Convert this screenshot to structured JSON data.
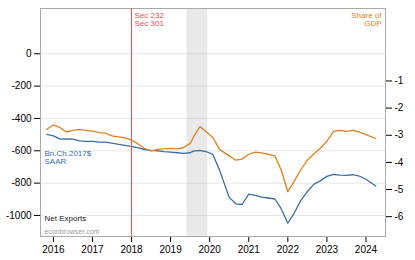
{
  "chart_data": {
    "type": "line",
    "x": [
      2015.83,
      2016.0,
      2016.17,
      2016.33,
      2016.5,
      2016.67,
      2016.83,
      2017.0,
      2017.17,
      2017.33,
      2017.5,
      2017.67,
      2017.83,
      2018.0,
      2018.17,
      2018.33,
      2018.5,
      2018.67,
      2018.83,
      2019.0,
      2019.17,
      2019.33,
      2019.5,
      2019.58,
      2019.75,
      2019.92,
      2020.08,
      2020.25,
      2020.5,
      2020.67,
      2020.83,
      2021.0,
      2021.17,
      2021.33,
      2021.5,
      2021.67,
      2021.83,
      2022.0,
      2022.17,
      2022.33,
      2022.5,
      2022.67,
      2022.83,
      2023.0,
      2023.17,
      2023.33,
      2023.5,
      2023.67,
      2023.83,
      2024.0,
      2024.25
    ],
    "xlim": [
      2015.67,
      2024.5
    ],
    "xticks": [
      2016,
      2017,
      2018,
      2019,
      2020,
      2021,
      2022,
      2023,
      2024
    ],
    "ylim": [
      -1130,
      280
    ],
    "yticks": [
      -1000,
      -800,
      -600,
      -400,
      -200,
      0
    ],
    "y2lim": [
      -6.73,
      1.67
    ],
    "y2ticks": [
      -6,
      -5,
      -4,
      -3,
      -2,
      -1
    ],
    "grid": true,
    "series": [
      {
        "color": "#3a6ea5",
        "values": [
          -498,
          -508,
          -528,
          -526,
          -528,
          -538,
          -542,
          -542,
          -546,
          -546,
          -552,
          -560,
          -566,
          -572,
          -582,
          -592,
          -598,
          -601,
          -605,
          -608,
          -612,
          -616,
          -612,
          -602,
          -598,
          -606,
          -622,
          -718,
          -888,
          -928,
          -932,
          -868,
          -876,
          -886,
          -892,
          -898,
          -958,
          -1048,
          -982,
          -908,
          -852,
          -806,
          -786,
          -758,
          -746,
          -750,
          -752,
          -748,
          -756,
          -776,
          -818
        ]
      },
      {
        "color": "#e08020",
        "axis": "y2",
        "values": [
          -2.78,
          -2.62,
          -2.72,
          -2.88,
          -2.82,
          -2.78,
          -2.82,
          -2.85,
          -2.9,
          -2.92,
          -3.02,
          -3.06,
          -3.1,
          -3.18,
          -3.32,
          -3.48,
          -3.58,
          -3.52,
          -3.5,
          -3.48,
          -3.5,
          -3.46,
          -3.3,
          -3.08,
          -2.68,
          -2.88,
          -3.08,
          -3.52,
          -3.76,
          -3.92,
          -3.88,
          -3.7,
          -3.62,
          -3.65,
          -3.7,
          -3.76,
          -4.28,
          -5.08,
          -4.68,
          -4.28,
          -3.92,
          -3.68,
          -3.48,
          -3.22,
          -2.86,
          -2.82,
          -2.86,
          -2.82,
          -2.88,
          -2.98,
          -3.12
        ]
      }
    ],
    "vlines": [
      {
        "x": 2018.0,
        "color": "#e05050"
      }
    ],
    "spans": [
      {
        "x1": 2019.42,
        "x2": 2019.95,
        "color": "#999999"
      }
    ],
    "annotations": [
      {
        "text": "Sec 232\nSec 301",
        "color": "#e05050"
      },
      {
        "text": "Share of\nGDP",
        "color": "#e08020"
      },
      {
        "text": "Bn.Ch.2017$\nSAAR",
        "color": "#3a6ea5"
      },
      {
        "text": "Net Exports",
        "color": "#222222"
      },
      {
        "text": "econbrowser.com",
        "color": "#999999"
      }
    ]
  }
}
